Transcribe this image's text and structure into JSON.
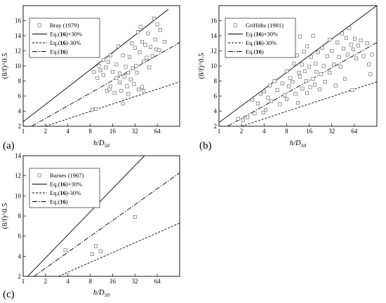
{
  "figure": {
    "charts": [
      {
        "label": "(a)",
        "ylabel": "(8/f)^0.5",
        "xlabel_main": "h/D",
        "xlabel_sub": "50"
      },
      {
        "label": "(b)",
        "ylabel": "(8/f)^0.5",
        "xlabel_main": "h/D",
        "xlabel_sub": "50"
      },
      {
        "label": "(c)",
        "ylabel": "(8/f)^0.5",
        "xlabel_main": "h/D",
        "xlabel_sub": "50"
      }
    ]
  },
  "chart_data": [
    {
      "type": "scatter",
      "panel": "(a)",
      "xlabel": "h/D50",
      "ylabel": "(8/f)^0.5",
      "x_scale": "log2",
      "xlim": [
        1,
        128
      ],
      "ylim": [
        2,
        18
      ],
      "xticks": [
        1,
        2,
        4,
        8,
        16,
        32,
        64
      ],
      "yticks": [
        2,
        4,
        6,
        8,
        10,
        12,
        14,
        16
      ],
      "grid": false,
      "legend_position": "top-left",
      "legend": [
        {
          "prefix": "",
          "bold": "",
          "suffix": "Bray (1979)",
          "kind": "marker"
        },
        {
          "prefix": "Eq.(",
          "bold": "16",
          "suffix": ")+30%",
          "kind": "solid"
        },
        {
          "prefix": "Eq.(",
          "bold": "16",
          "suffix": ")-30%",
          "kind": "dashed"
        },
        {
          "prefix": "Eq.(",
          "bold": "16",
          "suffix": ")",
          "kind": "dashdot"
        }
      ],
      "series": [
        {
          "name": "Bray (1979)",
          "marker": "square-open",
          "points": [
            [
              8,
              12
            ],
            [
              8.5,
              4.2
            ],
            [
              9,
              9.2
            ],
            [
              9.5,
              4.3
            ],
            [
              10,
              8.4
            ],
            [
              10.5,
              10
            ],
            [
              11,
              9.4
            ],
            [
              12,
              8.8
            ],
            [
              12,
              10.8
            ],
            [
              13,
              9.8
            ],
            [
              13.5,
              6.7
            ],
            [
              14,
              10.5
            ],
            [
              14.5,
              6.9
            ],
            [
              15,
              11.4
            ],
            [
              15,
              7.3
            ],
            [
              16,
              9.2
            ],
            [
              17,
              6.4
            ],
            [
              18,
              10.2
            ],
            [
              18,
              8.4
            ],
            [
              19,
              12.6
            ],
            [
              20,
              9
            ],
            [
              20,
              7.8
            ],
            [
              21,
              6.7
            ],
            [
              22,
              11.4
            ],
            [
              22,
              5
            ],
            [
              23,
              8.6
            ],
            [
              24,
              9.9
            ],
            [
              25,
              7.3
            ],
            [
              26,
              9.1
            ],
            [
              26,
              6.3
            ],
            [
              27,
              11.2
            ],
            [
              28,
              8.2
            ],
            [
              29,
              13
            ],
            [
              30,
              9.7
            ],
            [
              31,
              7.6
            ],
            [
              32,
              12.4
            ],
            [
              33,
              10
            ],
            [
              34,
              9.1
            ],
            [
              35,
              14.5
            ],
            [
              36,
              6.9
            ],
            [
              37,
              11.8
            ],
            [
              38,
              15.2
            ],
            [
              40,
              13.2
            ],
            [
              40,
              7.2
            ],
            [
              42,
              10.6
            ],
            [
              42,
              6.7
            ],
            [
              44,
              12.8
            ],
            [
              46,
              11.1
            ],
            [
              48,
              14.3
            ],
            [
              50,
              9.8
            ],
            [
              52,
              12.5
            ],
            [
              55,
              11.3
            ],
            [
              58,
              16.3
            ],
            [
              60,
              13.5
            ],
            [
              62,
              12.2
            ],
            [
              64,
              15.5
            ],
            [
              68,
              12.1
            ],
            [
              70,
              14.8
            ],
            [
              80,
              13.2
            ]
          ]
        }
      ],
      "lines": [
        {
          "name": "Eq.(16)+30%",
          "style": "solid",
          "x": [
            1,
            90
          ],
          "y": [
            2.6,
            17.5
          ]
        },
        {
          "name": "Eq.(16)-30%",
          "style": "dashed",
          "x": [
            2,
            128
          ],
          "y": [
            2,
            7.9
          ]
        },
        {
          "name": "Eq.(16)",
          "style": "dashdot",
          "x": [
            1.3,
            128
          ],
          "y": [
            2,
            13.1
          ]
        }
      ]
    },
    {
      "type": "scatter",
      "panel": "(b)",
      "xlabel": "h/D50",
      "ylabel": "(8/f)^0.5",
      "x_scale": "log2",
      "xlim": [
        1,
        128
      ],
      "ylim": [
        2,
        18
      ],
      "xticks": [
        1,
        2,
        4,
        8,
        16,
        32,
        64
      ],
      "yticks": [
        2,
        4,
        6,
        8,
        10,
        12,
        14,
        16
      ],
      "grid": false,
      "legend_position": "top-left",
      "legend": [
        {
          "prefix": "",
          "bold": "",
          "suffix": "Griffiths (1981)",
          "kind": "marker"
        },
        {
          "prefix": "Eq.(",
          "bold": "16",
          "suffix": ")+30%",
          "kind": "solid"
        },
        {
          "prefix": "Eq.(",
          "bold": "16",
          "suffix": ")-30%",
          "kind": "dashed"
        },
        {
          "prefix": "Eq.(",
          "bold": "16",
          "suffix": ")",
          "kind": "dashdot"
        }
      ],
      "series": [
        {
          "name": "Griffiths (1981)",
          "marker": "square-open",
          "points": [
            [
              1.8,
              3
            ],
            [
              2.1,
              2.8
            ],
            [
              2.4,
              3.2
            ],
            [
              2.8,
              5.5
            ],
            [
              3,
              3.7
            ],
            [
              3.3,
              5
            ],
            [
              3.6,
              6.3
            ],
            [
              3.9,
              3.8
            ],
            [
              4,
              6.6
            ],
            [
              4.2,
              4.2
            ],
            [
              4.5,
              5.8
            ],
            [
              4.8,
              7.4
            ],
            [
              5,
              5.3
            ],
            [
              5.5,
              8
            ],
            [
              6,
              6.8
            ],
            [
              6.5,
              4.9
            ],
            [
              7,
              7.7
            ],
            [
              7.5,
              6.1
            ],
            [
              8,
              9.3
            ],
            [
              8,
              5.6
            ],
            [
              8.6,
              7.3
            ],
            [
              9,
              8.4
            ],
            [
              9.6,
              7.9
            ],
            [
              10,
              10.3
            ],
            [
              10.5,
              6.3
            ],
            [
              11,
              11.4
            ],
            [
              11.3,
              5.1
            ],
            [
              11.7,
              9.1
            ],
            [
              12,
              13.9
            ],
            [
              12,
              8.6
            ],
            [
              12.8,
              10.2
            ],
            [
              13,
              7
            ],
            [
              13.6,
              11.9
            ],
            [
              14,
              9.3
            ],
            [
              14.6,
              8
            ],
            [
              15,
              12.6
            ],
            [
              15,
              6.4
            ],
            [
              16,
              9.9
            ],
            [
              16.5,
              7.2
            ],
            [
              17,
              11.2
            ],
            [
              18,
              14
            ],
            [
              18,
              8.3
            ],
            [
              19,
              7.5
            ],
            [
              19.5,
              10.3
            ],
            [
              20,
              9.2
            ],
            [
              21,
              11.8
            ],
            [
              22,
              6.9
            ],
            [
              23,
              8.9
            ],
            [
              24,
              12.4
            ],
            [
              25,
              10
            ],
            [
              26,
              7.9
            ],
            [
              28,
              11.3
            ],
            [
              30,
              13.5
            ],
            [
              30,
              9.1
            ],
            [
              32,
              12
            ],
            [
              34,
              10.2
            ],
            [
              36,
              7.4
            ],
            [
              38,
              13.1
            ],
            [
              40,
              11.2
            ],
            [
              42,
              9.9
            ],
            [
              44,
              14.3
            ],
            [
              46,
              12.3
            ],
            [
              48,
              8.3
            ],
            [
              50,
              13.7
            ],
            [
              52,
              11.5
            ],
            [
              55,
              15
            ],
            [
              58,
              12.8
            ],
            [
              60,
              6.8
            ],
            [
              62,
              12.2
            ],
            [
              65,
              13.6
            ],
            [
              68,
              11
            ],
            [
              72,
              12.7
            ],
            [
              78,
              13.4
            ],
            [
              85,
              11.3
            ],
            [
              95,
              13
            ],
            [
              100,
              10.2
            ],
            [
              105,
              8.9
            ],
            [
              110,
              11.5
            ]
          ]
        }
      ],
      "lines": [
        {
          "name": "Eq.(16)+30%",
          "style": "solid",
          "x": [
            1,
            128
          ],
          "y": [
            2.5,
            18
          ]
        },
        {
          "name": "Eq.(16)-30%",
          "style": "dashed",
          "x": [
            2,
            128
          ],
          "y": [
            2,
            7.9
          ]
        },
        {
          "name": "Eq.(16)",
          "style": "dashdot",
          "x": [
            1.3,
            128
          ],
          "y": [
            2,
            13.1
          ]
        }
      ]
    },
    {
      "type": "scatter",
      "panel": "(c)",
      "xlabel": "h/D50",
      "ylabel": "(8/f)^0.5",
      "x_scale": "log2",
      "xlim": [
        1,
        128
      ],
      "ylim": [
        2,
        14
      ],
      "xticks": [
        1,
        2,
        4,
        8,
        16,
        32,
        64
      ],
      "yticks": [
        2,
        4,
        6,
        8,
        10,
        12,
        14
      ],
      "grid": false,
      "legend_position": "top-left",
      "legend": [
        {
          "prefix": "",
          "bold": "",
          "suffix": "Barnes (1967)",
          "kind": "marker"
        },
        {
          "prefix": "Eq.(",
          "bold": "16",
          "suffix": ")+30%",
          "kind": "solid"
        },
        {
          "prefix": "Eq.(",
          "bold": "16",
          "suffix": ")-30%",
          "kind": "dashed"
        },
        {
          "prefix": "Eq.(",
          "bold": "16",
          "suffix": ")",
          "kind": "dashdot"
        }
      ],
      "series": [
        {
          "name": "Barnes (1967)",
          "marker": "square-open",
          "points": [
            [
              3.7,
              4.6
            ],
            [
              8.5,
              4.2
            ],
            [
              9.5,
              5
            ],
            [
              11,
              4.5
            ],
            [
              32,
              7.9
            ]
          ]
        }
      ],
      "lines": [
        {
          "name": "Eq.(16)+30%",
          "style": "solid",
          "x": [
            1.15,
            43
          ],
          "y": [
            2,
            14
          ]
        },
        {
          "name": "Eq.(16)-30%",
          "style": "dashed",
          "x": [
            3,
            128
          ],
          "y": [
            2,
            7.3
          ]
        },
        {
          "name": "Eq.(16)",
          "style": "dashdot",
          "x": [
            1.4,
            128
          ],
          "y": [
            2,
            12.3
          ]
        }
      ]
    }
  ]
}
